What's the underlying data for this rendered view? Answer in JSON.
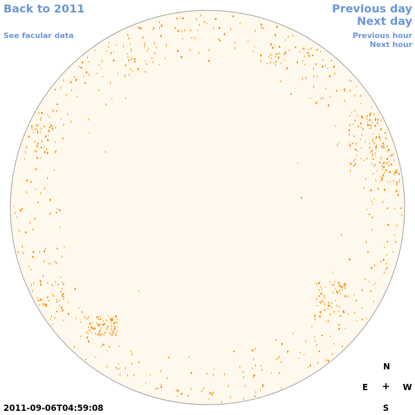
{
  "nav": {
    "back_label": "Back to 2011",
    "facular_label": "See facular data",
    "prev_day_label": "Previous day",
    "next_day_label": "Next day",
    "prev_hour_label": "Previous hour",
    "next_hour_label": "Next hour"
  },
  "timestamp": "2011-09-06T04:59:08",
  "compass": {
    "north": "N",
    "east": "E",
    "center": "+",
    "west": "W",
    "south": "S"
  },
  "colors": {
    "link": "#6c96d8",
    "disk_fill": "#fff8ec",
    "disk_outline": "#999999",
    "facula_marks": "#f08c00"
  }
}
